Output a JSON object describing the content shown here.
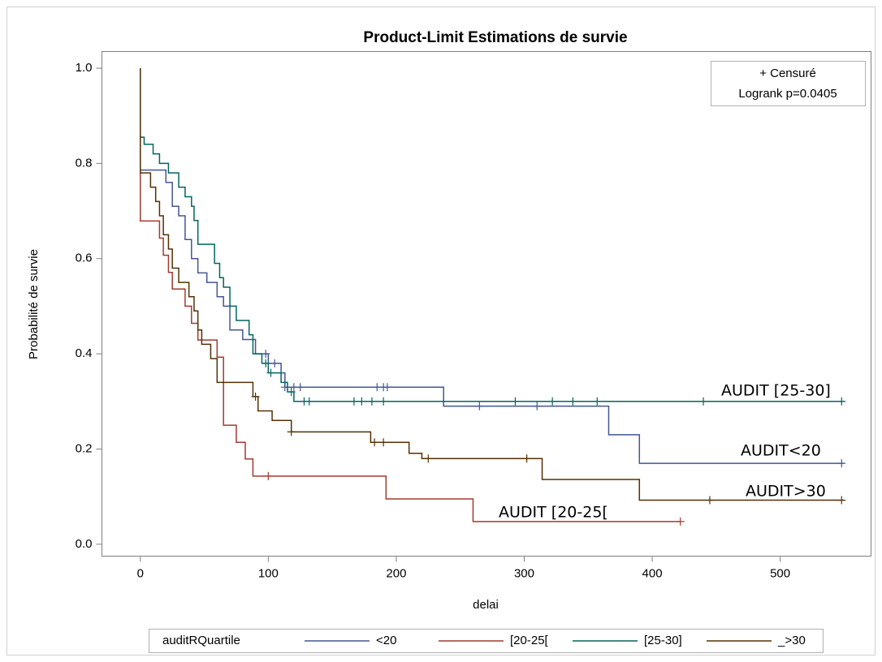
{
  "chart_data": {
    "type": "step",
    "title": "Product-Limit Estimations de survie",
    "x_label": "delai",
    "y_label": "Probabilité de survie",
    "xlim": [
      -30,
      571
    ],
    "ylim": [
      -0.025,
      1.035
    ],
    "xticks": [
      0,
      100,
      200,
      300,
      400,
      500
    ],
    "yticks": [
      {
        "value": 0,
        "label": "0.0"
      },
      0.2,
      0.4,
      0.6,
      0.8,
      {
        "value": 1,
        "label": "1.0"
      }
    ],
    "inset": [
      "+ Censuré",
      "Logrank p=0.0405"
    ],
    "legend_title": "auditRQuartile",
    "legend_position": "bottom",
    "annotations": [
      "AUDIT [25-30]",
      "AUDIT<20",
      "AUDIT>30",
      "AUDIT [20-25["
    ],
    "series": [
      {
        "name": "<20",
        "color": "#445694",
        "x": [
          0,
          0,
          20,
          25,
          30,
          35,
          40,
          45,
          52,
          60,
          65,
          70,
          80,
          90,
          100,
          110,
          113,
          237,
          366,
          390,
          550
        ],
        "values": [
          1,
          0.786,
          0.76,
          0.71,
          0.69,
          0.64,
          0.6,
          0.57,
          0.55,
          0.52,
          0.5,
          0.45,
          0.43,
          0.4,
          0.38,
          0.36,
          0.33,
          0.29,
          0.23,
          0.17,
          0.17
        ],
        "censor_x": [
          98,
          105,
          113,
          120,
          125,
          185,
          190,
          193,
          265,
          310,
          548
        ],
        "censor_values": [
          0.4,
          0.38,
          0.33,
          0.33,
          0.33,
          0.33,
          0.33,
          0.33,
          0.29,
          0.29,
          0.17
        ]
      },
      {
        "name": "[20-25[",
        "color": "#a23a2e",
        "x": [
          0,
          0,
          15,
          18,
          22,
          25,
          35,
          40,
          45,
          60,
          65,
          65,
          75,
          82,
          88,
          192,
          260,
          422
        ],
        "values": [
          1,
          0.679,
          0.643,
          0.607,
          0.571,
          0.536,
          0.5,
          0.464,
          0.429,
          0.393,
          0.357,
          0.25,
          0.214,
          0.179,
          0.143,
          0.0952,
          0.0476,
          0.0476
        ],
        "censor_x": [
          100,
          422
        ],
        "censor_values": [
          0.143,
          0.0476
        ]
      },
      {
        "name": "[25-30]",
        "color": "#01665e",
        "x": [
          0,
          0,
          3,
          10,
          15,
          22,
          30,
          35,
          40,
          42,
          45,
          58,
          62,
          65,
          70,
          75,
          85,
          88,
          95,
          100,
          110,
          115,
          120,
          550
        ],
        "values": [
          1,
          0.855,
          0.84,
          0.82,
          0.8,
          0.78,
          0.75,
          0.73,
          0.71,
          0.68,
          0.63,
          0.59,
          0.56,
          0.54,
          0.5,
          0.47,
          0.44,
          0.4,
          0.38,
          0.36,
          0.34,
          0.32,
          0.3,
          0.3
        ],
        "censor_x": [
          98,
          102,
          118,
          128,
          132,
          167,
          173,
          181,
          190,
          293,
          322,
          338,
          357,
          440,
          548
        ],
        "censor_values": [
          0.38,
          0.36,
          0.32,
          0.3,
          0.3,
          0.3,
          0.3,
          0.3,
          0.3,
          0.3,
          0.3,
          0.3,
          0.3,
          0.3,
          0.3
        ]
      },
      {
        "name": "_>30",
        "color": "#543005",
        "x": [
          0,
          0,
          8,
          12,
          15,
          18,
          22,
          25,
          30,
          38,
          42,
          45,
          48,
          55,
          60,
          88,
          92,
          103,
          118,
          180,
          210,
          220,
          314,
          390,
          550
        ],
        "values": [
          1,
          0.78,
          0.75,
          0.72,
          0.69,
          0.65,
          0.62,
          0.58,
          0.55,
          0.52,
          0.49,
          0.45,
          0.42,
          0.39,
          0.34,
          0.31,
          0.28,
          0.26,
          0.236,
          0.214,
          0.191,
          0.18,
          0.136,
          0.0925,
          0.0925
        ],
        "censor_x": [
          90,
          118,
          183,
          190,
          225,
          302,
          445,
          548
        ],
        "censor_values": [
          0.31,
          0.236,
          0.214,
          0.214,
          0.18,
          0.18,
          0.0925,
          0.0925
        ]
      }
    ]
  }
}
